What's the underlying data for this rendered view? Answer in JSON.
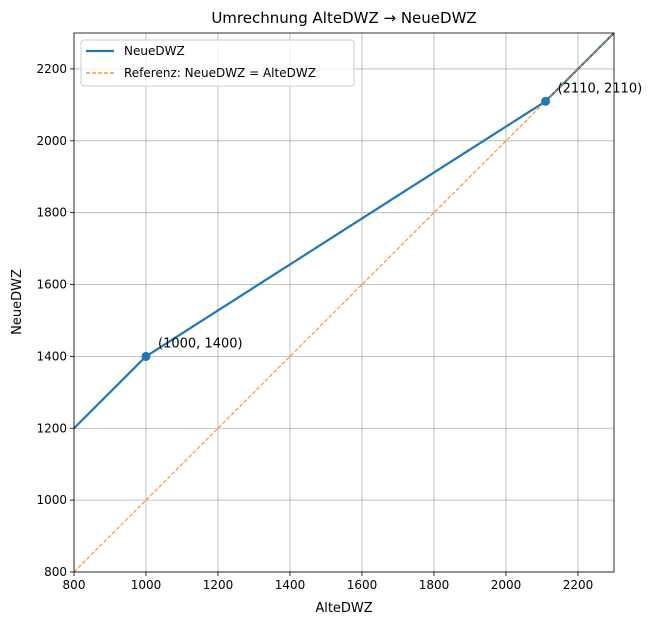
{
  "chart_data": {
    "type": "line",
    "title": "Umrechnung AlteDWZ → NeueDWZ",
    "xlabel": "AlteDWZ",
    "ylabel": "NeueDWZ",
    "xlim": [
      800,
      2300
    ],
    "ylim": [
      800,
      2300
    ],
    "xticks": [
      800,
      1000,
      1200,
      1400,
      1600,
      1800,
      2000,
      2200
    ],
    "yticks": [
      800,
      1000,
      1200,
      1400,
      1600,
      1800,
      2000,
      2200
    ],
    "grid": true,
    "legend_position": "top-left",
    "series": [
      {
        "name": "NeueDWZ",
        "color": "#1f77b4",
        "style": "solid",
        "x": [
          800,
          1000,
          2110,
          2300
        ],
        "y": [
          1200,
          1400,
          2110,
          2300
        ]
      },
      {
        "name": "Referenz: NeueDWZ = AlteDWZ",
        "color": "#ff7f0e",
        "style": "dashed",
        "x": [
          800,
          2300
        ],
        "y": [
          800,
          2300
        ]
      }
    ],
    "markers": [
      {
        "x": 1000,
        "y": 1400,
        "label": "(1000, 1400)"
      },
      {
        "x": 2110,
        "y": 2110,
        "label": "(2110, 2110)"
      }
    ]
  }
}
